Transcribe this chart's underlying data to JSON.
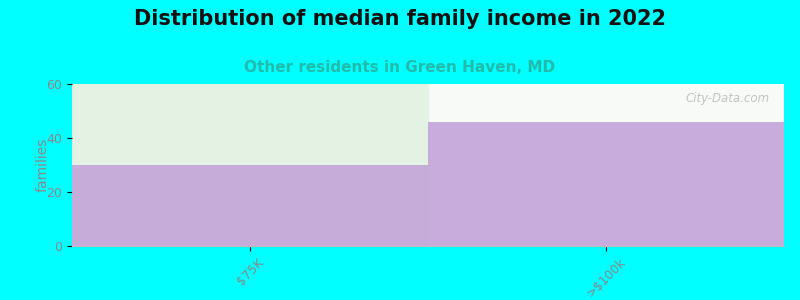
{
  "title": "Distribution of median family income in 2022",
  "subtitle": "Other residents in Green Haven, MD",
  "title_fontsize": 15,
  "subtitle_fontsize": 11,
  "subtitle_color": "#22bbaa",
  "categories": [
    "$75K",
    ">$100k"
  ],
  "values": [
    30,
    46
  ],
  "bar_color": "#c0a0d8",
  "bar_color_alpha": 0.85,
  "background_fill_color": "#e0f0e0",
  "xlabel": "",
  "ylabel": "families",
  "ylim": [
    0,
    60
  ],
  "yticks": [
    0,
    20,
    40,
    60
  ],
  "background_color": "#00ffff",
  "plot_bg_color": "#f8faf8",
  "watermark_text": "City-Data.com",
  "tick_color": "#888888",
  "spine_color": "#bbbbbb"
}
